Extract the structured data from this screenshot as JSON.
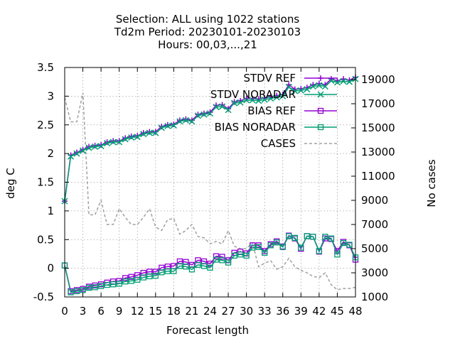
{
  "chart_data": {
    "type": "line",
    "title": [
      "Selection: ALL using  1022 stations",
      "Td2m   Period: 20230101-20230103",
      "Hours:  00,03,...,21"
    ],
    "xlabel": "Forecast length",
    "ylabel": "deg C",
    "y2label": "No cases",
    "xlim": [
      0,
      48
    ],
    "ylim": [
      -0.5,
      3.5
    ],
    "y2lim": [
      1000,
      20000
    ],
    "xticks": [
      "0",
      "3",
      "6",
      "9",
      "12",
      "15",
      "18",
      "21",
      "24",
      "27",
      "30",
      "33",
      "36",
      "39",
      "42",
      "45",
      "48"
    ],
    "yticks": [
      "-0.5",
      "0",
      "0.5",
      "1",
      "1.5",
      "2",
      "2.5",
      "3",
      "3.5"
    ],
    "y2ticks": [
      "1000",
      "3000",
      "5000",
      "7000",
      "9000",
      "11000",
      "13000",
      "15000",
      "17000",
      "19000"
    ],
    "x": [
      0,
      1,
      2,
      3,
      4,
      5,
      6,
      7,
      8,
      9,
      10,
      11,
      12,
      13,
      14,
      15,
      16,
      17,
      18,
      19,
      20,
      21,
      22,
      23,
      24,
      25,
      26,
      27,
      28,
      29,
      30,
      31,
      32,
      33,
      34,
      35,
      36,
      37,
      38,
      39,
      40,
      41,
      42,
      43,
      44,
      45,
      46,
      47,
      48
    ],
    "series": [
      {
        "name": "STDV REF",
        "axis": "y",
        "color": "#9400d3",
        "marker": "plus",
        "values": [
          1.17,
          1.97,
          2.02,
          2.07,
          2.12,
          2.14,
          2.15,
          2.2,
          2.22,
          2.22,
          2.27,
          2.3,
          2.31,
          2.36,
          2.38,
          2.38,
          2.47,
          2.5,
          2.51,
          2.58,
          2.6,
          2.58,
          2.68,
          2.7,
          2.72,
          2.84,
          2.85,
          2.78,
          2.9,
          2.92,
          2.96,
          2.96,
          2.95,
          2.97,
          2.99,
          3.01,
          3.03,
          3.2,
          3.12,
          3.13,
          3.15,
          3.2,
          3.22,
          3.2,
          3.3,
          3.27,
          3.3,
          3.28,
          3.33
        ]
      },
      {
        "name": "STDV NORADAR",
        "axis": "y",
        "color": "#009e73",
        "marker": "cross",
        "values": [
          1.17,
          1.95,
          2.0,
          2.05,
          2.1,
          2.12,
          2.13,
          2.18,
          2.2,
          2.2,
          2.25,
          2.28,
          2.29,
          2.34,
          2.36,
          2.36,
          2.45,
          2.48,
          2.49,
          2.56,
          2.58,
          2.56,
          2.66,
          2.68,
          2.7,
          2.81,
          2.82,
          2.76,
          2.88,
          2.89,
          2.93,
          2.93,
          2.92,
          2.94,
          2.96,
          2.98,
          3.0,
          3.16,
          3.09,
          3.1,
          3.12,
          3.17,
          3.19,
          3.17,
          3.27,
          3.24,
          3.26,
          3.25,
          3.3
        ]
      },
      {
        "name": "BIAS REF",
        "axis": "y",
        "color": "#9400d3",
        "marker": "square",
        "values": [
          0.05,
          -0.4,
          -0.38,
          -0.36,
          -0.32,
          -0.3,
          -0.28,
          -0.25,
          -0.23,
          -0.22,
          -0.17,
          -0.15,
          -0.12,
          -0.08,
          -0.06,
          -0.06,
          0.01,
          0.03,
          0.04,
          0.12,
          0.11,
          0.06,
          0.14,
          0.12,
          0.08,
          0.21,
          0.2,
          0.14,
          0.27,
          0.29,
          0.26,
          0.4,
          0.4,
          0.3,
          0.42,
          0.47,
          0.38,
          0.57,
          0.52,
          0.34,
          0.56,
          0.55,
          0.29,
          0.52,
          0.51,
          0.3,
          0.46,
          0.4,
          0.15
        ]
      },
      {
        "name": "BIAS NORADAR",
        "axis": "y",
        "color": "#009e73",
        "marker": "square",
        "values": [
          0.05,
          -0.42,
          -0.4,
          -0.38,
          -0.34,
          -0.33,
          -0.31,
          -0.29,
          -0.28,
          -0.27,
          -0.23,
          -0.22,
          -0.2,
          -0.16,
          -0.14,
          -0.13,
          -0.07,
          -0.05,
          -0.05,
          0.04,
          0.03,
          -0.02,
          0.06,
          0.04,
          0.01,
          0.15,
          0.14,
          0.1,
          0.22,
          0.24,
          0.22,
          0.36,
          0.37,
          0.27,
          0.4,
          0.45,
          0.37,
          0.56,
          0.53,
          0.36,
          0.56,
          0.55,
          0.3,
          0.55,
          0.52,
          0.24,
          0.44,
          0.41,
          0.19
        ]
      },
      {
        "name": "CASES",
        "axis": "y2",
        "color": "#a0a0a0",
        "marker": "none",
        "dashed": true,
        "values": [
          17500,
          15500,
          15500,
          17900,
          7800,
          7800,
          9000,
          7000,
          7000,
          8300,
          7600,
          7000,
          7000,
          7600,
          8300,
          6800,
          6500,
          7400,
          7500,
          6200,
          6500,
          7000,
          6000,
          5900,
          5400,
          5600,
          5400,
          6500,
          5200,
          5000,
          5000,
          5500,
          3500,
          3800,
          4000,
          3300,
          3500,
          4200,
          3500,
          3200,
          3000,
          2700,
          2600,
          3000,
          2000,
          1600,
          1700,
          1700,
          1800
        ]
      }
    ]
  }
}
